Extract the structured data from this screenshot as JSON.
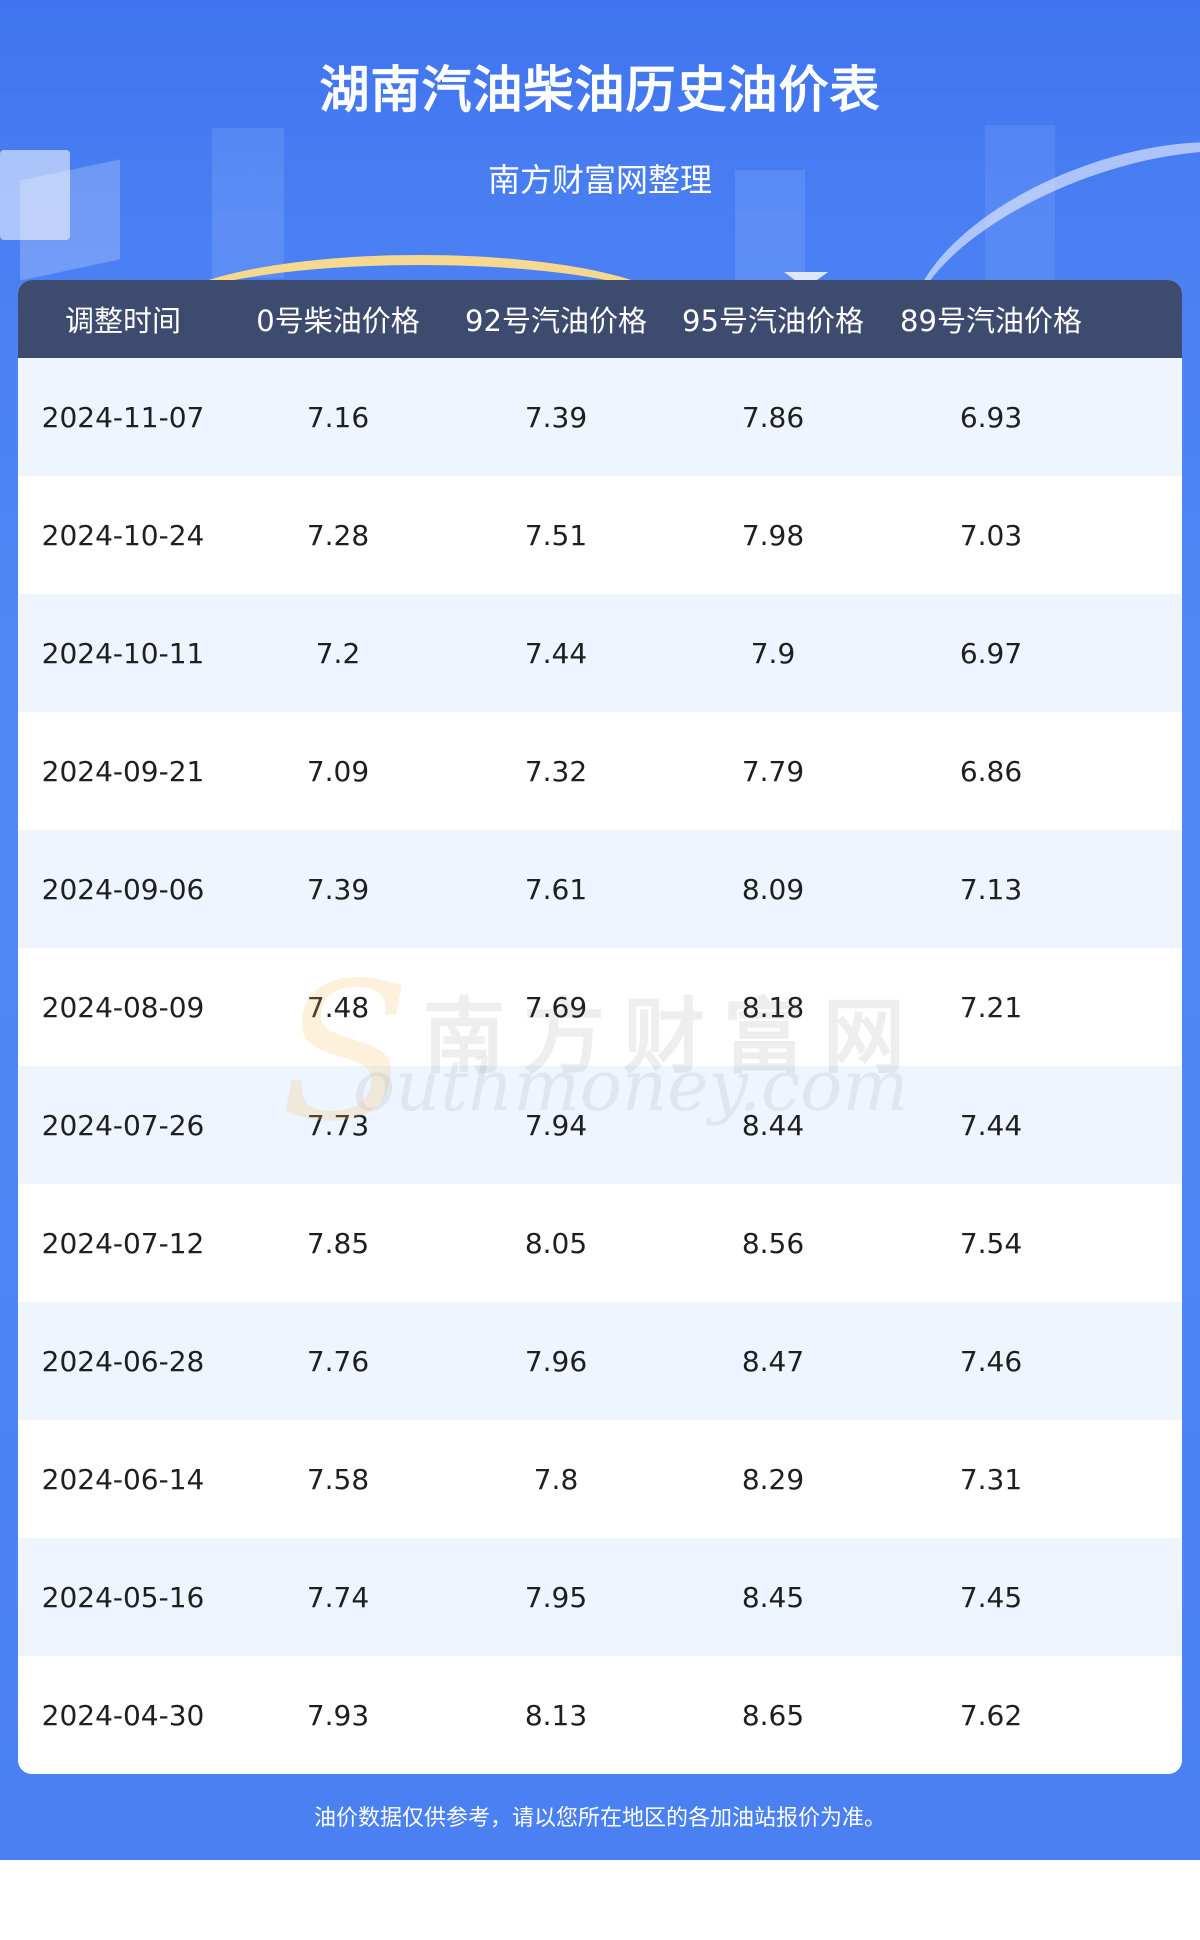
{
  "header": {
    "title": "湖南汽油柴油历史油价表",
    "subtitle": "南方财富网整理"
  },
  "table": {
    "columns": [
      "调整时间",
      "0号柴油价格",
      "92号汽油价格",
      "95号汽油价格",
      "89号汽油价格"
    ],
    "rows": [
      [
        "2024-11-07",
        "7.16",
        "7.39",
        "7.86",
        "6.93"
      ],
      [
        "2024-10-24",
        "7.28",
        "7.51",
        "7.98",
        "7.03"
      ],
      [
        "2024-10-11",
        "7.2",
        "7.44",
        "7.9",
        "6.97"
      ],
      [
        "2024-09-21",
        "7.09",
        "7.32",
        "7.79",
        "6.86"
      ],
      [
        "2024-09-06",
        "7.39",
        "7.61",
        "8.09",
        "7.13"
      ],
      [
        "2024-08-09",
        "7.48",
        "7.69",
        "8.18",
        "7.21"
      ],
      [
        "2024-07-26",
        "7.73",
        "7.94",
        "8.44",
        "7.44"
      ],
      [
        "2024-07-12",
        "7.85",
        "8.05",
        "8.56",
        "7.54"
      ],
      [
        "2024-06-28",
        "7.76",
        "7.96",
        "8.47",
        "7.46"
      ],
      [
        "2024-06-14",
        "7.58",
        "7.8",
        "8.29",
        "7.31"
      ],
      [
        "2024-05-16",
        "7.74",
        "7.95",
        "8.45",
        "7.45"
      ],
      [
        "2024-04-30",
        "7.93",
        "8.13",
        "8.65",
        "7.62"
      ]
    ]
  },
  "watermark": {
    "chinese": "南方财富网",
    "english": "outhmoney.com",
    "mark": "S"
  },
  "footer": {
    "note": "油价数据仅供参考，请以您所在地区的各加油站报价为准。"
  },
  "colors": {
    "background_blue": "#4a80f2",
    "header_row": "#3d4b6e",
    "stripe_row": "#eef5ff",
    "accent_gold": "#f6d98f"
  }
}
